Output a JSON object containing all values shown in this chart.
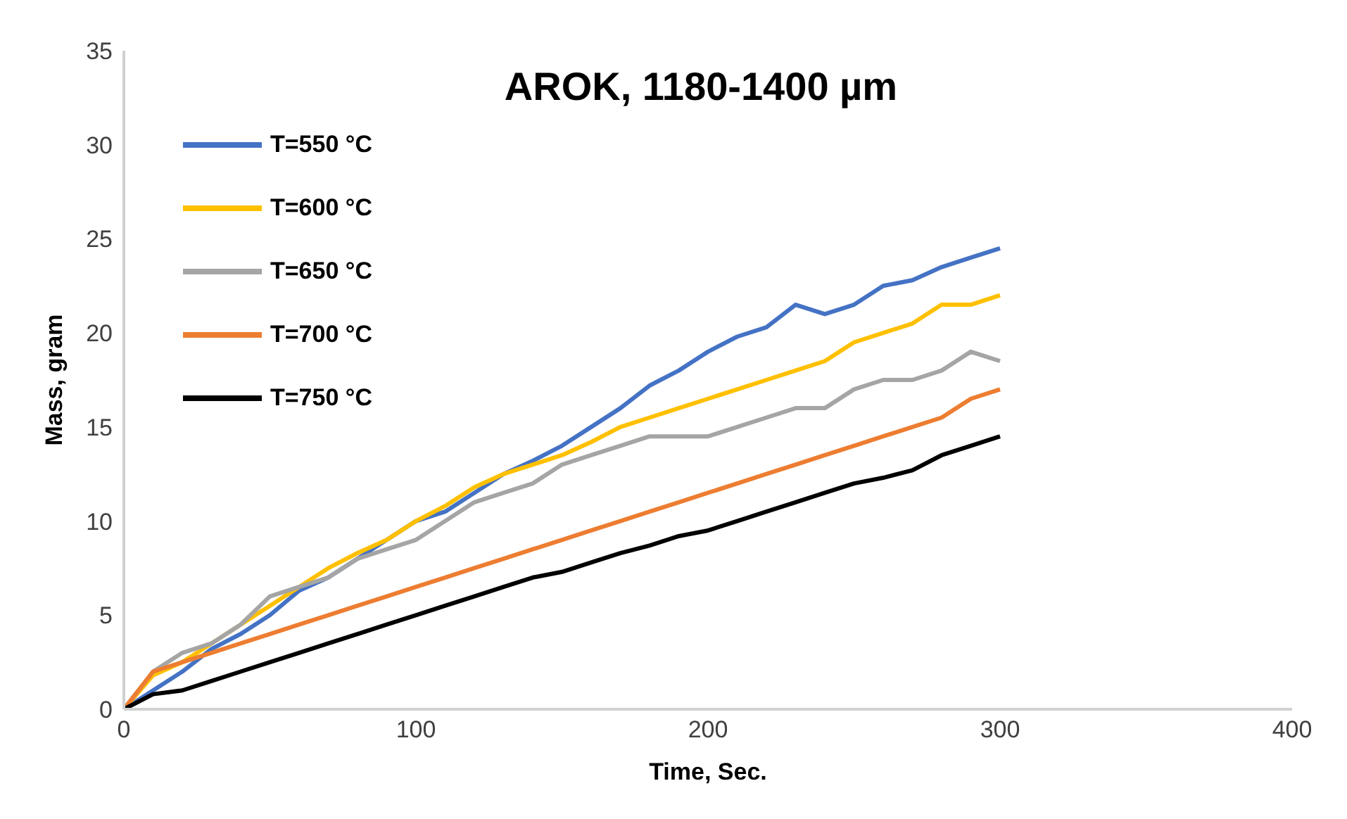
{
  "chart_data": {
    "type": "line",
    "title": "AROK, 1180-1400 µm",
    "xlabel": "Time, Sec.",
    "ylabel": "Mass, gram",
    "x": [
      0,
      10,
      20,
      30,
      40,
      50,
      60,
      70,
      80,
      90,
      100,
      110,
      120,
      130,
      140,
      150,
      160,
      170,
      180,
      190,
      200,
      210,
      220,
      230,
      240,
      250,
      260,
      270,
      280,
      290,
      300
    ],
    "series": [
      {
        "name": "T=550 °C",
        "color": "#4472c4",
        "values": [
          0,
          1,
          2,
          3.2,
          4,
          5,
          6.3,
          7,
          8,
          9,
          10,
          10.5,
          11.5,
          12.5,
          13.2,
          14,
          15,
          16,
          17.2,
          18,
          19,
          19.8,
          20.3,
          21.5,
          21,
          21.5,
          22.5,
          22.8,
          23.5,
          24,
          24.5
        ]
      },
      {
        "name": "T=600 °C",
        "color": "#ffc000",
        "values": [
          0,
          1.8,
          2.5,
          3.5,
          4.5,
          5.5,
          6.5,
          7.5,
          8.3,
          9,
          10,
          10.8,
          11.8,
          12.5,
          13,
          13.5,
          14.2,
          15,
          15.5,
          16,
          16.5,
          17,
          17.5,
          18,
          18.5,
          19.5,
          20,
          20.5,
          21.5,
          21.5,
          22
        ]
      },
      {
        "name": "T=650 °C",
        "color": "#a5a5a5",
        "values": [
          0,
          2,
          3,
          3.5,
          4.5,
          6,
          6.5,
          7,
          8,
          8.5,
          9,
          10,
          11,
          11.5,
          12,
          13,
          13.5,
          14,
          14.5,
          14.5,
          14.5,
          15,
          15.5,
          16,
          16,
          17,
          17.5,
          17.5,
          18,
          19,
          18.5
        ]
      },
      {
        "name": "T=700 °C",
        "color": "#ed7d31",
        "values": [
          0,
          2,
          2.5,
          3,
          3.5,
          4,
          4.5,
          5,
          5.5,
          6,
          6.5,
          7,
          7.5,
          8,
          8.5,
          9,
          9.5,
          10,
          10.5,
          11,
          11.5,
          12,
          12.5,
          13,
          13.5,
          14,
          14.5,
          15,
          15.5,
          16.5,
          17
        ]
      },
      {
        "name": "T=750 °C",
        "color": "#000000",
        "values": [
          0,
          0.8,
          1,
          1.5,
          2,
          2.5,
          3,
          3.5,
          4,
          4.5,
          5,
          5.5,
          6,
          6.5,
          7,
          7.3,
          7.8,
          8.3,
          8.7,
          9.2,
          9.5,
          10,
          10.5,
          11,
          11.5,
          12,
          12.3,
          12.7,
          13.5,
          14,
          14.5
        ]
      }
    ],
    "xlim": [
      0,
      400
    ],
    "xticks": [
      0,
      100,
      200,
      300,
      400
    ],
    "ylim": [
      0,
      35
    ],
    "yticks": [
      0,
      5,
      10,
      15,
      20,
      25,
      30,
      35
    ],
    "legend": "top left"
  }
}
